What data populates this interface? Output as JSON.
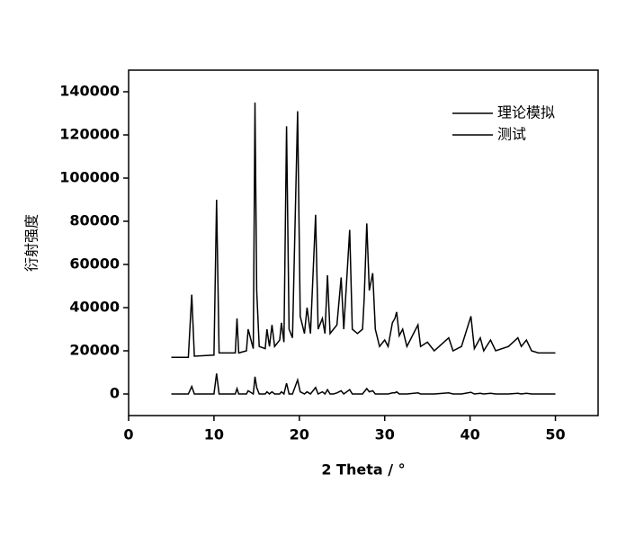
{
  "chart_data": {
    "type": "line",
    "x_label": "2 Theta / °",
    "y_label": "衍射强度",
    "xlim": [
      0,
      55
    ],
    "xticks": [
      0,
      10,
      20,
      30,
      40,
      50
    ],
    "ylim": [
      -10000,
      150000
    ],
    "yticks": [
      0,
      20000,
      40000,
      60000,
      80000,
      100000,
      120000,
      140000
    ],
    "legend": "upper right",
    "x": [
      5,
      7.0,
      7.4,
      7.7,
      10.0,
      10.3,
      10.6,
      12.5,
      12.7,
      12.9,
      13.8,
      14.0,
      14.6,
      14.8,
      15.0,
      15.3,
      16.0,
      16.2,
      16.5,
      16.8,
      17.1,
      17.7,
      17.9,
      18.2,
      18.5,
      18.8,
      19.2,
      19.8,
      20.1,
      20.6,
      20.9,
      21.3,
      21.9,
      22.2,
      22.7,
      23.0,
      23.3,
      23.6,
      24.0,
      24.4,
      24.9,
      25.2,
      25.9,
      26.2,
      26.8,
      27.4,
      27.6,
      27.9,
      28.2,
      28.6,
      28.9,
      29.4,
      30.0,
      30.4,
      30.9,
      31.2,
      31.4,
      31.7,
      32.1,
      32.6,
      33.9,
      34.2,
      35.0,
      35.8,
      37.5,
      38.0,
      39.0,
      40.1,
      40.5,
      41.2,
      41.6,
      42.4,
      43.0,
      44.5,
      45.6,
      46.0,
      46.6,
      47.2,
      48.0,
      50
    ],
    "series": [
      {
        "name": "测试",
        "color": "#000000",
        "values": [
          17000,
          17000,
          46000,
          17500,
          18000,
          90000,
          19000,
          19000,
          35000,
          19000,
          20000,
          30000,
          21000,
          135000,
          48000,
          22000,
          21000,
          30000,
          22000,
          32000,
          22000,
          25000,
          33000,
          24000,
          124000,
          30000,
          26000,
          131000,
          36000,
          28000,
          40000,
          28000,
          83000,
          30000,
          35000,
          28000,
          55000,
          28000,
          30000,
          32000,
          54000,
          30000,
          76000,
          30000,
          28000,
          30000,
          44000,
          79000,
          48000,
          56000,
          30000,
          22000,
          25000,
          22000,
          33000,
          35000,
          38000,
          27000,
          30000,
          22000,
          32000,
          22000,
          24000,
          20000,
          26000,
          20000,
          22000,
          36000,
          21000,
          26000,
          20000,
          25000,
          20000,
          22000,
          26000,
          22000,
          25000,
          20000,
          19000,
          19000
        ]
      },
      {
        "name": "理论模拟",
        "color": "#000000",
        "values": [
          0,
          0,
          3500,
          0,
          0,
          9500,
          0,
          0,
          2500,
          0,
          0,
          1500,
          0,
          8000,
          3000,
          0,
          0,
          1000,
          0,
          1000,
          0,
          0,
          1000,
          0,
          5000,
          0,
          0,
          6500,
          1000,
          0,
          1000,
          0,
          3000,
          0,
          1000,
          0,
          2000,
          0,
          0,
          500,
          1500,
          0,
          2000,
          0,
          0,
          0,
          1000,
          2500,
          1000,
          1500,
          0,
          0,
          0,
          0,
          500,
          500,
          1000,
          0,
          0,
          0,
          500,
          0,
          0,
          0,
          500,
          0,
          0,
          800,
          0,
          300,
          0,
          300,
          0,
          0,
          300,
          0,
          300,
          0,
          0,
          0
        ]
      }
    ]
  }
}
